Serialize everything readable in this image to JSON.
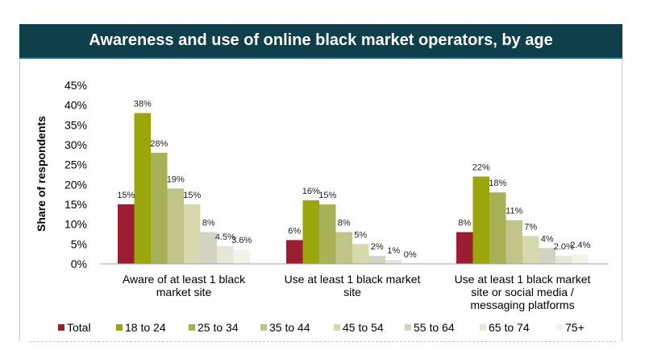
{
  "chart_data": {
    "type": "bar",
    "title": "Awareness and use of online black market operators, by age",
    "ylabel": "Share of respondents",
    "ylim": [
      0,
      45
    ],
    "yticks": [
      "0%",
      "5%",
      "10%",
      "15%",
      "20%",
      "25%",
      "30%",
      "35%",
      "40%",
      "45%"
    ],
    "grid": false,
    "legend_position": "bottom",
    "categories": [
      [
        "Aware of at least 1 black",
        "market site"
      ],
      [
        "Use at least 1 black market",
        "site"
      ],
      [
        "Use at least 1 black market",
        "site or social media /",
        "messaging platforms"
      ]
    ],
    "series": [
      {
        "name": "Total",
        "color": "#9a1d32",
        "values": [
          15,
          6,
          8
        ],
        "labels": [
          "15%",
          "6%",
          "8%"
        ]
      },
      {
        "name": "18 to 24",
        "color": "#9ba50c",
        "values": [
          38,
          16,
          22
        ],
        "labels": [
          "38%",
          "16%",
          "22%"
        ]
      },
      {
        "name": "25 to 34",
        "color": "#a8b155",
        "values": [
          28,
          15,
          18
        ],
        "labels": [
          "28%",
          "15%",
          "18%"
        ]
      },
      {
        "name": "35 to 44",
        "color": "#c0c587",
        "values": [
          19,
          8,
          11
        ],
        "labels": [
          "19%",
          "8%",
          "11%"
        ]
      },
      {
        "name": "45 to 54",
        "color": "#d6d9ae",
        "values": [
          15,
          5,
          7
        ],
        "labels": [
          "15%",
          "5%",
          "7%"
        ]
      },
      {
        "name": "55 to 64",
        "color": "#d3d3c3",
        "values": [
          8,
          2,
          4
        ],
        "labels": [
          "8%",
          "2%",
          "4%"
        ]
      },
      {
        "name": "65 to 74",
        "color": "#e7e8d9",
        "values": [
          4.5,
          1,
          2.0
        ],
        "labels": [
          "4.5%",
          "1%",
          "2.0%"
        ]
      },
      {
        "name": "75+",
        "color": "#f3f3ea",
        "values": [
          3.6,
          0,
          2.4
        ],
        "labels": [
          "3.6%",
          "0%",
          "2.4%"
        ]
      }
    ]
  }
}
